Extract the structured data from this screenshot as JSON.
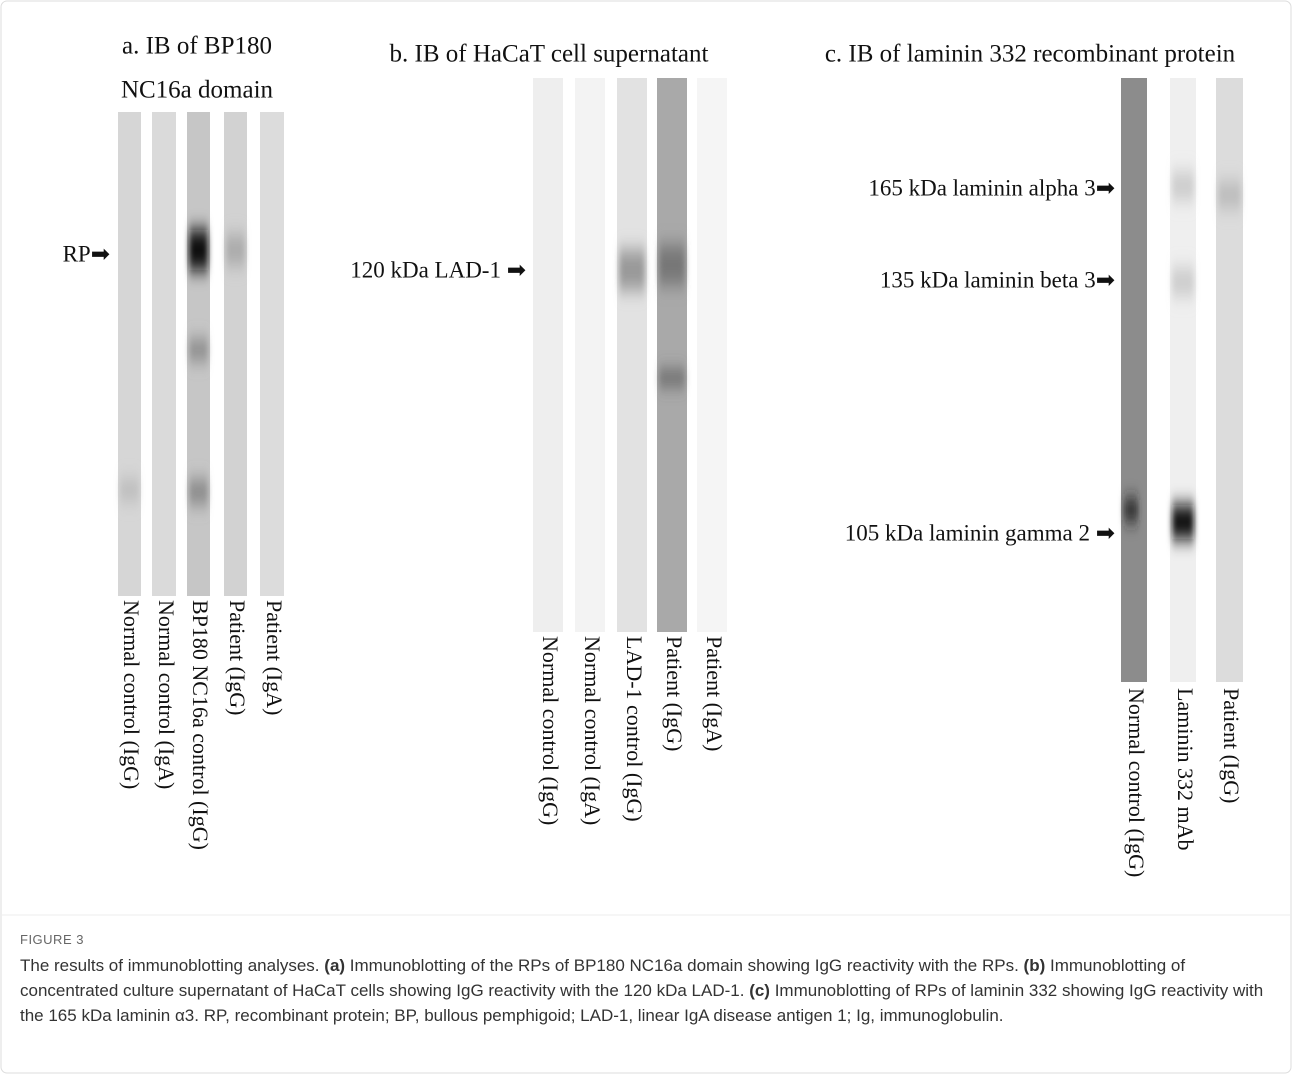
{
  "panels": [
    {
      "title": [
        "a. IB of BP180",
        "NC16a domain"
      ],
      "markers": [
        "RP➡"
      ],
      "lanes": [
        "Normal control (IgG)",
        "Normal control (IgA)",
        "BP180 NC16a control (IgG)",
        "Patient (IgG)",
        "Patient (IgA)"
      ]
    },
    {
      "title": [
        "b. IB of  HaCaT  cell supernatant"
      ],
      "markers": [
        "120 kDa LAD-1 ➡"
      ],
      "lanes": [
        "Normal control (IgG)",
        "Normal control (IgA)",
        "LAD-1 control (IgG)",
        "Patient (IgG)",
        "Patient (IgA)"
      ]
    },
    {
      "title": [
        "c. IB of laminin  332 recombinant protein"
      ],
      "markers": [
        "165 kDa laminin  alpha 3➡",
        "135 kDa laminin  beta 3➡",
        "105 kDa laminin  gamma 2 ➡"
      ],
      "lanes": [
        "Normal control (IgG)",
        "Laminin  332 mAb",
        "Patient (IgG)"
      ]
    }
  ],
  "figure": {
    "label": "FIGURE 3",
    "caption": {
      "lead": "The results of immunoblotting analyses.",
      "parts": [
        {
          "label": "(a)",
          "text": "Immunoblotting of the RPs of BP180 NC16a domain showing IgG reactivity with the RPs."
        },
        {
          "label": "(b)",
          "text": "Immunoblotting of concentrated culture supernatant of HaCaT cells showing IgG reactivity with the 120 kDa LAD-1."
        },
        {
          "label": "(c)",
          "text": "Immunoblotting of RPs of laminin 332 showing IgG reactivity with the 165 kDa laminin α3."
        }
      ],
      "tail": "RP, recombinant protein; BP, bullous pemphigoid; LAD-1, linear IgA disease antigen 1; Ig, immunoglobulin."
    }
  }
}
